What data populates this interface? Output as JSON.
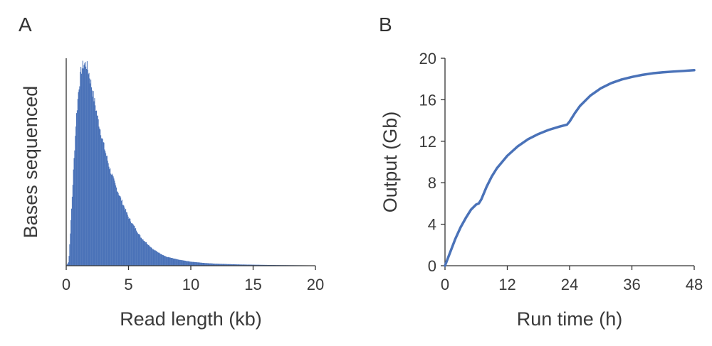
{
  "colors": {
    "series": "#4a72b8",
    "axis": "#333333",
    "text": "#3a3a3a"
  },
  "chart_data": [
    {
      "panel": "A",
      "type": "bar",
      "xlabel": "Read length (kb)",
      "ylabel": "Bases sequenced",
      "xlim": [
        0,
        20
      ],
      "ylim": [
        0,
        1
      ],
      "xticks": [
        "0",
        "5",
        "10",
        "15",
        "20"
      ],
      "y_tick_labels_shown": false,
      "bin_width_kb": 0.05,
      "x": [
        0.2,
        0.4,
        0.6,
        0.8,
        1.0,
        1.2,
        1.4,
        1.6,
        1.8,
        2.0,
        2.5,
        3.0,
        3.5,
        4.0,
        5.0,
        6.0,
        7.0,
        8.0,
        9.0,
        10.0,
        11.0,
        12.0,
        13.0,
        14.0,
        15.0,
        16.0,
        17.0,
        18.0,
        19.0,
        20.0
      ],
      "y": [
        0.02,
        0.25,
        0.5,
        0.73,
        0.88,
        0.97,
        1.0,
        1.0,
        0.96,
        0.9,
        0.74,
        0.6,
        0.48,
        0.39,
        0.24,
        0.14,
        0.08,
        0.045,
        0.03,
        0.02,
        0.014,
        0.01,
        0.008,
        0.006,
        0.005,
        0.004,
        0.003,
        0.0025,
        0.002,
        0.0015
      ]
    },
    {
      "panel": "B",
      "type": "line",
      "xlabel": "Run time (h)",
      "ylabel": "Output (Gb)",
      "xlim": [
        0,
        48
      ],
      "ylim": [
        0,
        20
      ],
      "xticks": [
        "0",
        "12",
        "24",
        "36",
        "48"
      ],
      "yticks": [
        "0",
        "4",
        "8",
        "12",
        "16",
        "20"
      ],
      "series": [
        {
          "x": [
            0,
            1,
            2,
            3,
            4,
            5,
            6,
            6.5,
            7,
            8,
            9,
            10,
            12,
            14,
            16,
            18,
            20,
            22,
            23.5,
            24,
            25,
            26,
            28,
            30,
            32,
            34,
            36,
            38,
            40,
            42,
            44,
            46,
            48
          ],
          "y": [
            0,
            1.3,
            2.6,
            3.7,
            4.6,
            5.4,
            5.9,
            6.0,
            6.4,
            7.6,
            8.6,
            9.4,
            10.6,
            11.5,
            12.2,
            12.7,
            13.1,
            13.4,
            13.6,
            13.9,
            14.7,
            15.4,
            16.4,
            17.1,
            17.6,
            17.95,
            18.2,
            18.4,
            18.55,
            18.65,
            18.72,
            18.78,
            18.85
          ]
        }
      ]
    }
  ]
}
